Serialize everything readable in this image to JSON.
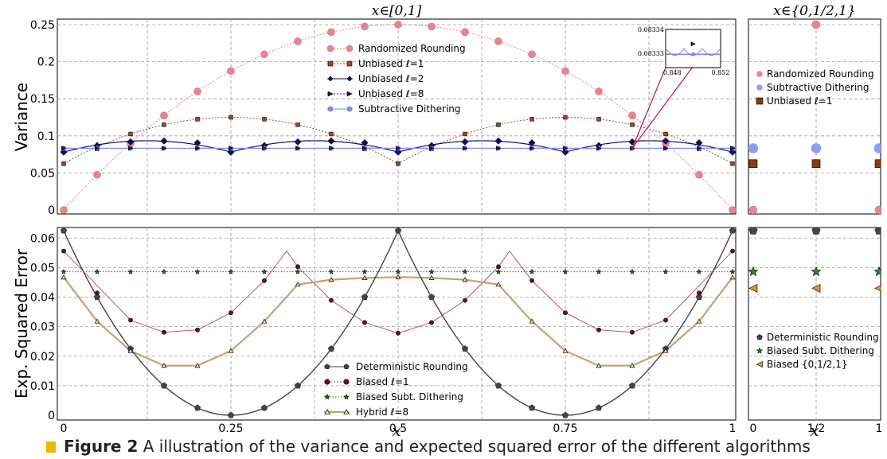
{
  "chart_data": [
    {
      "type": "line",
      "panel": "variance-continuous",
      "title": "x∈[0,1]",
      "ylabel": "Variance",
      "xlim": [
        0,
        1
      ],
      "ylim": [
        0,
        0.25
      ],
      "yticks": [
        "0",
        "0.05",
        "0.1",
        "0.15",
        "0.2",
        "0.25"
      ],
      "series": [
        {
          "name": "Randomized Rounding",
          "color": "#e8858a",
          "x": [
            0,
            0.05,
            0.1,
            0.15,
            0.2,
            0.25,
            0.3,
            0.35,
            0.4,
            0.45,
            0.5,
            0.55,
            0.6,
            0.65,
            0.7,
            0.75,
            0.8,
            0.85,
            0.9,
            0.95,
            1
          ],
          "y": [
            0,
            0.0475,
            0.09,
            0.1275,
            0.16,
            0.1875,
            0.21,
            0.2275,
            0.24,
            0.2475,
            0.25,
            0.2475,
            0.24,
            0.2275,
            0.21,
            0.1875,
            0.16,
            0.1275,
            0.09,
            0.0475,
            0
          ]
        },
        {
          "name": "Unbiased ℓ=1",
          "color": "#a8462a",
          "x": [
            0,
            0.05,
            0.1,
            0.15,
            0.2,
            0.25,
            0.3,
            0.35,
            0.4,
            0.45,
            0.5,
            0.55,
            0.6,
            0.65,
            0.7,
            0.75,
            0.8,
            0.85,
            0.9,
            0.95,
            1
          ],
          "y": [
            0.0625,
            0.0825,
            0.1025,
            0.115,
            0.1225,
            0.125,
            0.1225,
            0.115,
            0.1025,
            0.0825,
            0.0625,
            0.0825,
            0.1025,
            0.115,
            0.1225,
            0.125,
            0.1225,
            0.115,
            0.1025,
            0.0825,
            0.0625
          ]
        },
        {
          "name": "Unbiased ℓ=2",
          "color": "#0d0d6b",
          "x": [
            0,
            0.05,
            0.1,
            0.15,
            0.2,
            0.25,
            0.3,
            0.35,
            0.4,
            0.45,
            0.5,
            0.55,
            0.6,
            0.65,
            0.7,
            0.75,
            0.8,
            0.85,
            0.9,
            0.95,
            1
          ],
          "y": [
            0.0781,
            0.0869,
            0.0919,
            0.0931,
            0.0906,
            0.0781,
            0.0869,
            0.0919,
            0.0931,
            0.0906,
            0.0781,
            0.0869,
            0.0919,
            0.0931,
            0.0906,
            0.0781,
            0.0869,
            0.0919,
            0.0931,
            0.0906,
            0.0781
          ]
        },
        {
          "name": "Unbiased ℓ=8",
          "color": "#3a0a55",
          "x": [
            0,
            0.05,
            0.1,
            0.15,
            0.2,
            0.25,
            0.3,
            0.35,
            0.4,
            0.45,
            0.5,
            0.55,
            0.6,
            0.65,
            0.7,
            0.75,
            0.8,
            0.85,
            0.9,
            0.95,
            1
          ],
          "y": [
            0.0833,
            0.0833,
            0.0833,
            0.0833,
            0.0833,
            0.0833,
            0.0833,
            0.0833,
            0.0833,
            0.0833,
            0.0833,
            0.0833,
            0.0833,
            0.0833,
            0.0833,
            0.0833,
            0.0833,
            0.0833,
            0.0833,
            0.0833,
            0.0833
          ]
        },
        {
          "name": "Subtractive Dithering",
          "color": "#7f8ff0",
          "x": [
            0,
            0.05,
            0.1,
            0.15,
            0.2,
            0.25,
            0.3,
            0.35,
            0.4,
            0.45,
            0.5,
            0.55,
            0.6,
            0.65,
            0.7,
            0.75,
            0.8,
            0.85,
            0.9,
            0.95,
            1
          ],
          "y": [
            0.0833,
            0.0833,
            0.0833,
            0.0833,
            0.0833,
            0.0833,
            0.0833,
            0.0833,
            0.0833,
            0.0833,
            0.0833,
            0.0833,
            0.0833,
            0.0833,
            0.0833,
            0.0833,
            0.0833,
            0.0833,
            0.0833,
            0.0833,
            0.0833
          ]
        }
      ],
      "legend": "top-center",
      "inset": {
        "xlim": [
          0.848,
          0.852
        ],
        "ylim": [
          0.08333,
          0.08334
        ],
        "xticks": [
          "0.848",
          "0.852"
        ],
        "yticks": [
          "0.08333",
          "0.08334"
        ]
      }
    },
    {
      "type": "scatter",
      "panel": "variance-discrete",
      "title": "x∈{0,1/2,1}",
      "xlim": [
        0,
        1
      ],
      "ylim": [
        0,
        0.25
      ],
      "series": [
        {
          "name": "Randomized Rounding",
          "color": "#e8858a",
          "x": [
            0,
            0.5,
            1
          ],
          "y": [
            0,
            0.25,
            0
          ]
        },
        {
          "name": "Subtractive Dithering",
          "color": "#8f9ef5",
          "x": [
            0,
            0.5,
            1
          ],
          "y": [
            0.0833,
            0.0833,
            0.0833
          ]
        },
        {
          "name": "Unbiased ℓ=1",
          "color": "#8b3a14",
          "x": [
            0,
            0.5,
            1
          ],
          "y": [
            0.0625,
            0.0625,
            0.0625
          ]
        }
      ],
      "legend": "center-right"
    },
    {
      "type": "line",
      "panel": "mse-continuous",
      "ylabel": "Exp. Squared Error",
      "xlabel": "x",
      "xlim": [
        0,
        1
      ],
      "ylim": [
        0,
        0.0625
      ],
      "xticks": [
        "0",
        "0.25",
        "0.5",
        "0.75",
        "1"
      ],
      "yticks": [
        "0",
        "0.01",
        "0.02",
        "0.03",
        "0.04",
        "0.05",
        "0.06"
      ],
      "series": [
        {
          "name": "Deterministic Rounding",
          "color": "#444444",
          "x": [
            0,
            0.05,
            0.1,
            0.15,
            0.2,
            0.25,
            0.3,
            0.35,
            0.4,
            0.45,
            0.5,
            0.55,
            0.6,
            0.65,
            0.7,
            0.75,
            0.8,
            0.85,
            0.9,
            0.95,
            1
          ],
          "y": [
            0.0625,
            0.04,
            0.0225,
            0.01,
            0.0025,
            0,
            0.0025,
            0.01,
            0.0225,
            0.04,
            0.0625,
            0.04,
            0.0225,
            0.01,
            0.0025,
            0,
            0.0025,
            0.01,
            0.0225,
            0.04,
            0.0625
          ]
        },
        {
          "name": "Biased ℓ=1",
          "color": "#6b0f1a",
          "x": [
            0,
            0.05,
            0.1,
            0.15,
            0.2,
            0.25,
            0.3,
            0.35,
            0.4,
            0.45,
            0.5,
            0.55,
            0.6,
            0.65,
            0.7,
            0.75,
            0.8,
            0.85,
            0.9,
            0.95,
            1
          ],
          "y": [
            0.0556,
            0.0414,
            0.0322,
            0.0281,
            0.0289,
            0.0347,
            0.0456,
            0.0503,
            0.0389,
            0.0314,
            0.0278,
            0.0314,
            0.0389,
            0.0503,
            0.0456,
            0.0347,
            0.0289,
            0.0281,
            0.0322,
            0.0414,
            0.0556
          ]
        },
        {
          "name": "Biased Subt. Dithering",
          "color": "#1f6b1f",
          "x": [
            0,
            0.05,
            0.1,
            0.15,
            0.2,
            0.25,
            0.3,
            0.35,
            0.4,
            0.45,
            0.5,
            0.55,
            0.6,
            0.65,
            0.7,
            0.75,
            0.8,
            0.85,
            0.9,
            0.95,
            1
          ],
          "y": [
            0.0486,
            0.0486,
            0.0486,
            0.0486,
            0.0486,
            0.0486,
            0.0486,
            0.0486,
            0.0486,
            0.0486,
            0.0486,
            0.0486,
            0.0486,
            0.0486,
            0.0486,
            0.0486,
            0.0486,
            0.0486,
            0.0486,
            0.0486,
            0.0486
          ]
        },
        {
          "name": "Hybrid ℓ=8",
          "color": "#c8a070",
          "x": [
            0,
            0.05,
            0.1,
            0.15,
            0.2,
            0.25,
            0.3,
            0.35,
            0.4,
            0.45,
            0.5,
            0.55,
            0.6,
            0.65,
            0.7,
            0.75,
            0.8,
            0.85,
            0.9,
            0.95,
            1
          ],
          "y": [
            0.0467,
            0.0318,
            0.0218,
            0.0168,
            0.0168,
            0.0218,
            0.0318,
            0.0443,
            0.0459,
            0.0465,
            0.0468,
            0.0465,
            0.0459,
            0.0443,
            0.0318,
            0.0218,
            0.0168,
            0.0168,
            0.0218,
            0.0318,
            0.0467
          ]
        }
      ],
      "legend": "bottom-center"
    },
    {
      "type": "scatter",
      "panel": "mse-discrete",
      "xlabel": "x",
      "xlim": [
        0,
        1
      ],
      "ylim": [
        0,
        0.0625
      ],
      "xticks": [
        "0",
        "1/2",
        "1"
      ],
      "series": [
        {
          "name": "Deterministic Rounding",
          "color": "#444444",
          "x": [
            0,
            0.5,
            1
          ],
          "y": [
            0.0625,
            0.0625,
            0.0625
          ]
        },
        {
          "name": "Biased Subt. Dithering",
          "color": "#2e8b2e",
          "x": [
            0,
            0.5,
            1
          ],
          "y": [
            0.0486,
            0.0486,
            0.0486
          ]
        },
        {
          "name": "Biased {0,1/2,1}",
          "color": "#f28c28",
          "x": [
            0,
            0.5,
            1
          ],
          "y": [
            0.043,
            0.043,
            0.043
          ]
        }
      ],
      "legend": "center-right"
    }
  ],
  "caption": {
    "label": "Figure 2",
    "text": "A illustration of the variance and expected squared error of the different algorithms"
  }
}
